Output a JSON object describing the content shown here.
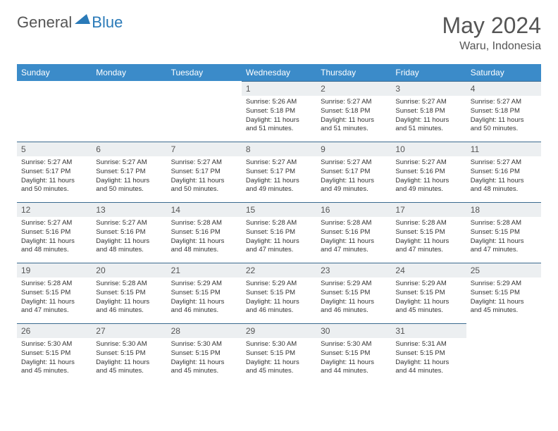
{
  "logo": {
    "part1": "General",
    "part2": "Blue"
  },
  "title": "May 2024",
  "location": "Waru, Indonesia",
  "colors": {
    "header_bg": "#3b8bc9",
    "header_text": "#ffffff",
    "daynum_bg": "#eceff1",
    "daynum_border": "#3b6a8f",
    "body_text": "#333333",
    "title_text": "#555555",
    "logo_accent": "#2a7ab8"
  },
  "weekdays": [
    "Sunday",
    "Monday",
    "Tuesday",
    "Wednesday",
    "Thursday",
    "Friday",
    "Saturday"
  ],
  "weeks": [
    [
      null,
      null,
      null,
      {
        "n": "1",
        "sr": "5:26 AM",
        "ss": "5:18 PM",
        "dl": "11 hours and 51 minutes."
      },
      {
        "n": "2",
        "sr": "5:27 AM",
        "ss": "5:18 PM",
        "dl": "11 hours and 51 minutes."
      },
      {
        "n": "3",
        "sr": "5:27 AM",
        "ss": "5:18 PM",
        "dl": "11 hours and 51 minutes."
      },
      {
        "n": "4",
        "sr": "5:27 AM",
        "ss": "5:18 PM",
        "dl": "11 hours and 50 minutes."
      }
    ],
    [
      {
        "n": "5",
        "sr": "5:27 AM",
        "ss": "5:17 PM",
        "dl": "11 hours and 50 minutes."
      },
      {
        "n": "6",
        "sr": "5:27 AM",
        "ss": "5:17 PM",
        "dl": "11 hours and 50 minutes."
      },
      {
        "n": "7",
        "sr": "5:27 AM",
        "ss": "5:17 PM",
        "dl": "11 hours and 50 minutes."
      },
      {
        "n": "8",
        "sr": "5:27 AM",
        "ss": "5:17 PM",
        "dl": "11 hours and 49 minutes."
      },
      {
        "n": "9",
        "sr": "5:27 AM",
        "ss": "5:17 PM",
        "dl": "11 hours and 49 minutes."
      },
      {
        "n": "10",
        "sr": "5:27 AM",
        "ss": "5:16 PM",
        "dl": "11 hours and 49 minutes."
      },
      {
        "n": "11",
        "sr": "5:27 AM",
        "ss": "5:16 PM",
        "dl": "11 hours and 48 minutes."
      }
    ],
    [
      {
        "n": "12",
        "sr": "5:27 AM",
        "ss": "5:16 PM",
        "dl": "11 hours and 48 minutes."
      },
      {
        "n": "13",
        "sr": "5:27 AM",
        "ss": "5:16 PM",
        "dl": "11 hours and 48 minutes."
      },
      {
        "n": "14",
        "sr": "5:28 AM",
        "ss": "5:16 PM",
        "dl": "11 hours and 48 minutes."
      },
      {
        "n": "15",
        "sr": "5:28 AM",
        "ss": "5:16 PM",
        "dl": "11 hours and 47 minutes."
      },
      {
        "n": "16",
        "sr": "5:28 AM",
        "ss": "5:16 PM",
        "dl": "11 hours and 47 minutes."
      },
      {
        "n": "17",
        "sr": "5:28 AM",
        "ss": "5:15 PM",
        "dl": "11 hours and 47 minutes."
      },
      {
        "n": "18",
        "sr": "5:28 AM",
        "ss": "5:15 PM",
        "dl": "11 hours and 47 minutes."
      }
    ],
    [
      {
        "n": "19",
        "sr": "5:28 AM",
        "ss": "5:15 PM",
        "dl": "11 hours and 47 minutes."
      },
      {
        "n": "20",
        "sr": "5:28 AM",
        "ss": "5:15 PM",
        "dl": "11 hours and 46 minutes."
      },
      {
        "n": "21",
        "sr": "5:29 AM",
        "ss": "5:15 PM",
        "dl": "11 hours and 46 minutes."
      },
      {
        "n": "22",
        "sr": "5:29 AM",
        "ss": "5:15 PM",
        "dl": "11 hours and 46 minutes."
      },
      {
        "n": "23",
        "sr": "5:29 AM",
        "ss": "5:15 PM",
        "dl": "11 hours and 46 minutes."
      },
      {
        "n": "24",
        "sr": "5:29 AM",
        "ss": "5:15 PM",
        "dl": "11 hours and 45 minutes."
      },
      {
        "n": "25",
        "sr": "5:29 AM",
        "ss": "5:15 PM",
        "dl": "11 hours and 45 minutes."
      }
    ],
    [
      {
        "n": "26",
        "sr": "5:30 AM",
        "ss": "5:15 PM",
        "dl": "11 hours and 45 minutes."
      },
      {
        "n": "27",
        "sr": "5:30 AM",
        "ss": "5:15 PM",
        "dl": "11 hours and 45 minutes."
      },
      {
        "n": "28",
        "sr": "5:30 AM",
        "ss": "5:15 PM",
        "dl": "11 hours and 45 minutes."
      },
      {
        "n": "29",
        "sr": "5:30 AM",
        "ss": "5:15 PM",
        "dl": "11 hours and 45 minutes."
      },
      {
        "n": "30",
        "sr": "5:30 AM",
        "ss": "5:15 PM",
        "dl": "11 hours and 44 minutes."
      },
      {
        "n": "31",
        "sr": "5:31 AM",
        "ss": "5:15 PM",
        "dl": "11 hours and 44 minutes."
      },
      null
    ]
  ],
  "labels": {
    "sunrise": "Sunrise:",
    "sunset": "Sunset:",
    "daylight": "Daylight:"
  }
}
